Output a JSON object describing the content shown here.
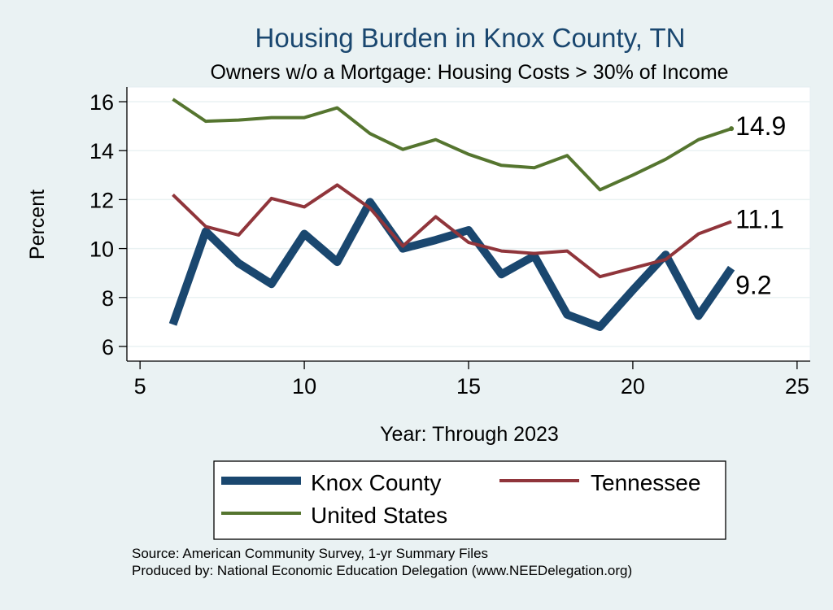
{
  "chart_data": {
    "type": "line",
    "title": "Housing Burden in Knox County, TN",
    "subtitle": "Owners w/o a Mortgage: Housing Costs > 30% of Income",
    "xlabel": "Year: Through 2023",
    "ylabel": "Percent",
    "xlim": [
      4.6,
      25.4
    ],
    "ylim": [
      5.4,
      16.6
    ],
    "xticks": [
      5,
      10,
      15,
      20,
      25
    ],
    "yticks": [
      6,
      8,
      10,
      12,
      14,
      16
    ],
    "grid": true,
    "legend_position": "bottom",
    "x": [
      6,
      7,
      8,
      9,
      10,
      11,
      12,
      13,
      14,
      15,
      16,
      17,
      18,
      19,
      20,
      21,
      22,
      23
    ],
    "series": [
      {
        "name": "Knox County",
        "color": "#1a476f",
        "values": [
          6.9,
          10.7,
          9.4,
          8.55,
          10.6,
          9.45,
          11.9,
          10.0,
          10.35,
          10.75,
          8.95,
          9.7,
          7.3,
          6.8,
          8.3,
          9.75,
          7.25,
          9.2
        ],
        "end_label": "9.2"
      },
      {
        "name": "Tennessee",
        "color": "#90353b",
        "values": [
          12.2,
          10.9,
          10.55,
          12.05,
          11.7,
          12.6,
          11.65,
          10.1,
          11.3,
          10.25,
          9.9,
          9.8,
          9.9,
          8.85,
          9.2,
          9.55,
          10.6,
          11.1
        ],
        "end_label": "11.1"
      },
      {
        "name": "United States",
        "color": "#55752f",
        "values": [
          16.1,
          15.2,
          15.25,
          15.35,
          15.35,
          15.75,
          14.7,
          14.05,
          14.45,
          13.85,
          13.4,
          13.3,
          13.8,
          12.4,
          13.0,
          13.65,
          14.45,
          14.9
        ],
        "end_label": "14.9"
      }
    ]
  },
  "notes": {
    "source": "Source: American Community Survey, 1-yr Summary Files",
    "produced_by": "Produced by: National Economic Education Delegation (www.NEEDelegation.org)"
  }
}
